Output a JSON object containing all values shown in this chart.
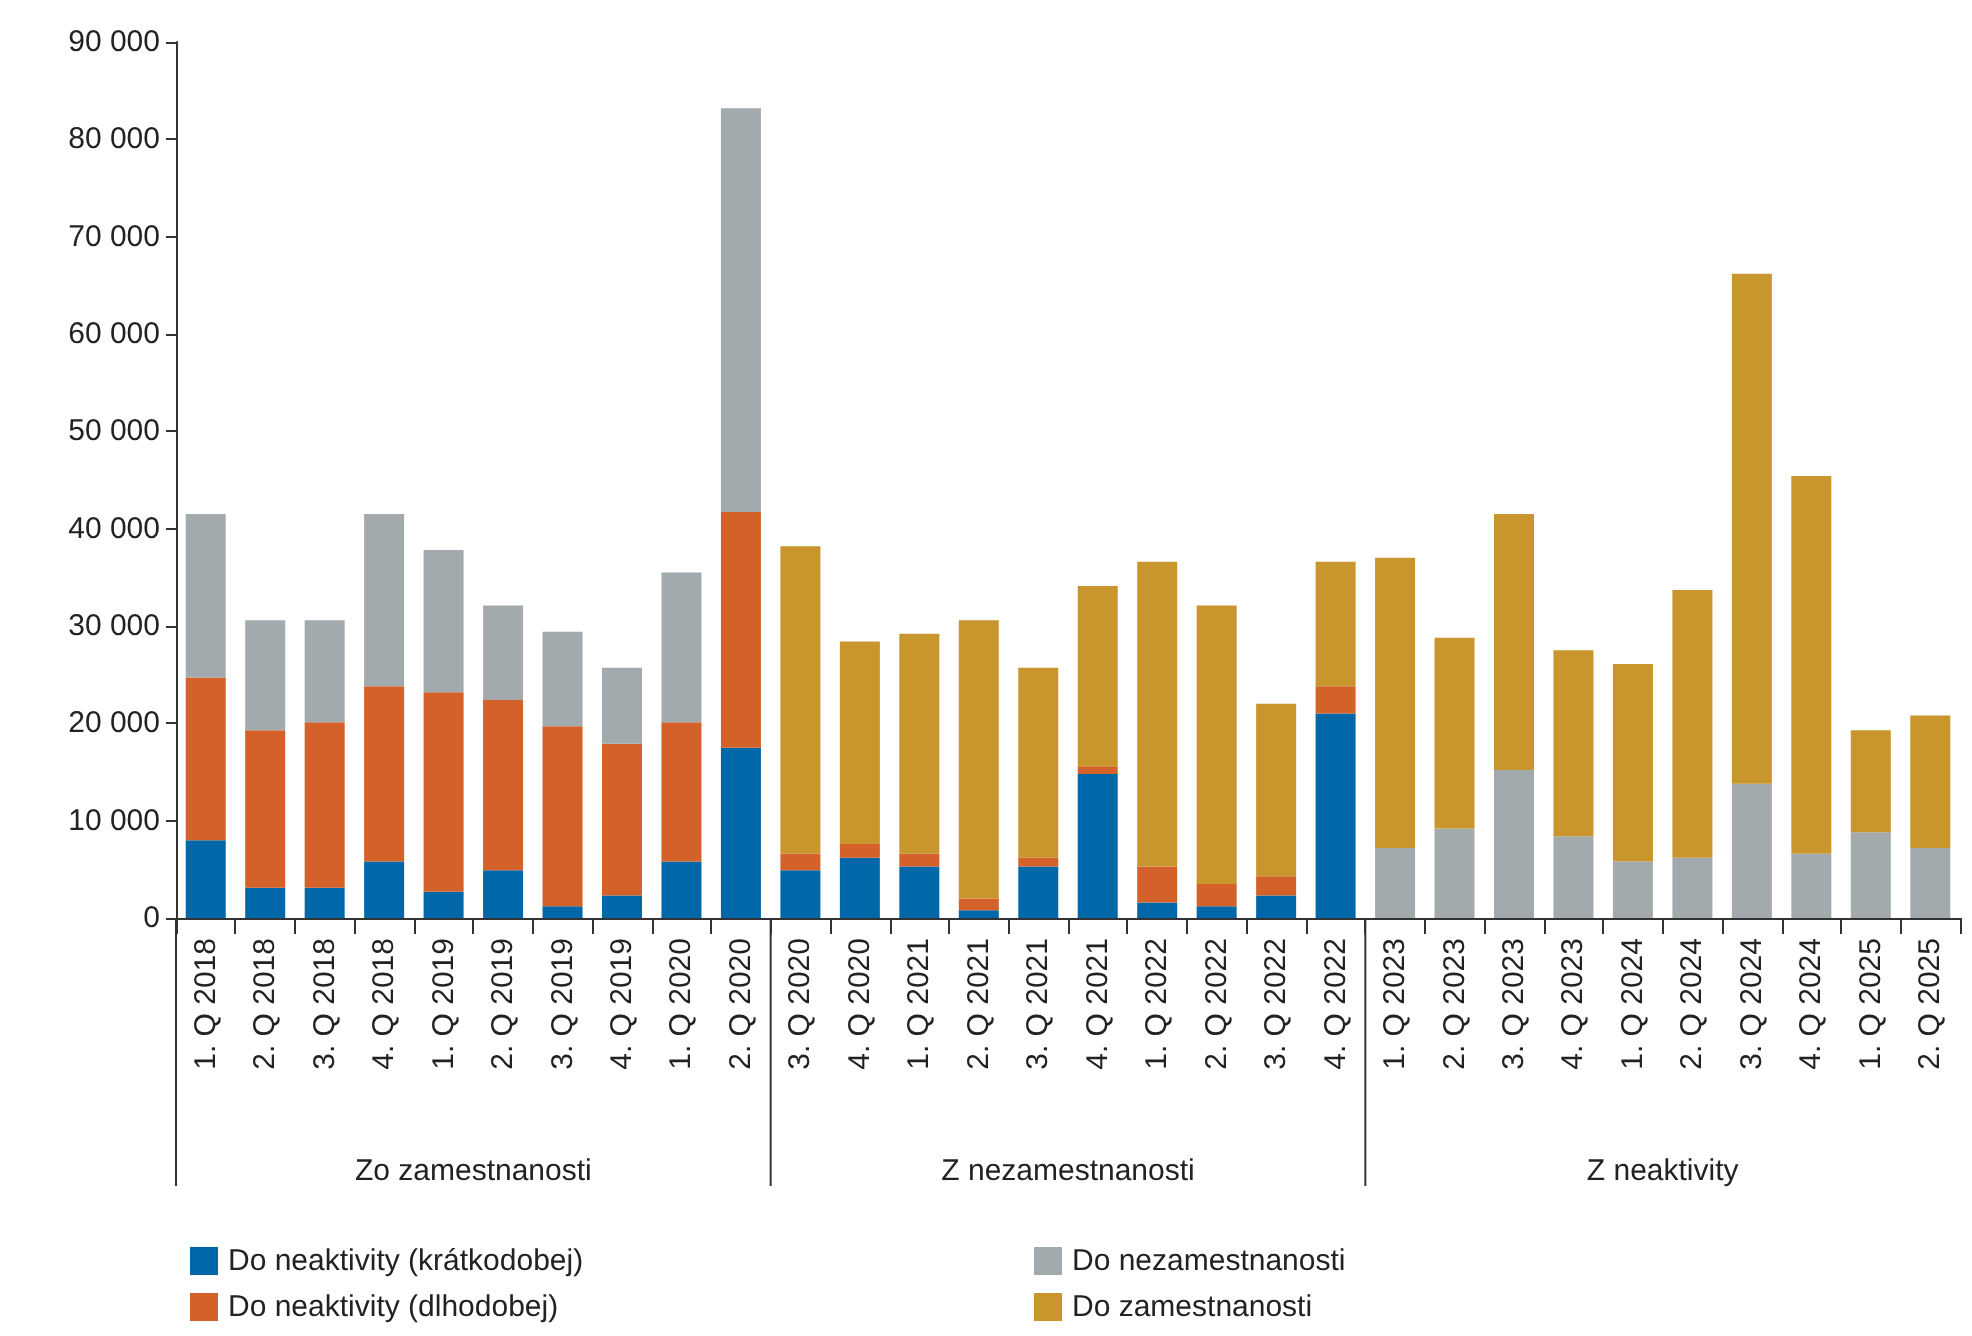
{
  "chart_data": {
    "type": "bar",
    "stacked": true,
    "categories": [
      "1. Q 2018",
      "2. Q 2018",
      "3. Q 2018",
      "4. Q 2018",
      "1. Q 2019",
      "2. Q 2019",
      "3. Q 2019",
      "4. Q 2019",
      "1. Q 2020",
      "2. Q 2020",
      "3. Q 2020",
      "4. Q 2020",
      "1. Q 2021",
      "2. Q 2021",
      "3. Q 2021",
      "4. Q 2021",
      "1. Q 2022",
      "2. Q 2022",
      "3. Q 2022",
      "4. Q 2022",
      "1. Q 2023",
      "2. Q 2023",
      "3. Q 2023",
      "4. Q 2023",
      "1. Q 2024",
      "2. Q 2024",
      "3. Q 2024",
      "4. Q 2024",
      "1. Q 2025",
      "2. Q 2025"
    ],
    "series": [
      {
        "name": "Do neaktivity (krátkodobej)",
        "color": "#0068a8",
        "values": [
          8000,
          3100,
          3100,
          5800,
          2700,
          4900,
          1200,
          2300,
          5800,
          17500,
          4900,
          6200,
          5300,
          800,
          5300,
          14800,
          1600,
          1200,
          2300,
          21000,
          null,
          null,
          null,
          null,
          null,
          null,
          null,
          null,
          null,
          null
        ]
      },
      {
        "name": "Do neaktivity (dlhodobej)",
        "color": "#d4602a",
        "values": [
          16700,
          16200,
          17000,
          18000,
          20500,
          17500,
          18500,
          15600,
          14300,
          24200,
          1700,
          1400,
          1300,
          1200,
          900,
          800,
          3700,
          2300,
          2000,
          2800,
          null,
          null,
          null,
          null,
          null,
          null,
          null,
          null,
          null,
          null
        ]
      },
      {
        "name": "Do nezamestnanosti",
        "color": "#a3aaad",
        "values": [
          16800,
          11300,
          10500,
          17700,
          14600,
          9700,
          9700,
          7800,
          15400,
          41500,
          null,
          null,
          null,
          null,
          null,
          null,
          null,
          null,
          null,
          null,
          7200,
          9200,
          15200,
          8400,
          5800,
          6200,
          13800,
          6600,
          8800,
          7200
        ]
      },
      {
        "name": "Do zamestnanosti",
        "color": "#c9952d",
        "values": [
          null,
          null,
          null,
          null,
          null,
          null,
          null,
          null,
          null,
          null,
          31600,
          20800,
          22600,
          28600,
          19500,
          18500,
          31300,
          28600,
          17700,
          12800,
          29800,
          19600,
          26300,
          19100,
          20300,
          27500,
          52400,
          38800,
          10500,
          13600
        ]
      }
    ],
    "ylim": [
      0,
      90000
    ],
    "yticks": [
      0,
      {
        "value": 10000,
        "label": "10 000"
      },
      {
        "value": 20000,
        "label": "20 000"
      },
      {
        "value": 30000,
        "label": "30 000"
      },
      {
        "value": 40000,
        "label": "40 000"
      },
      {
        "value": 50000,
        "label": "50 000"
      },
      {
        "value": 60000,
        "label": "60 000"
      },
      {
        "value": 70000,
        "label": "70 000"
      },
      {
        "value": 80000,
        "label": "80 000"
      },
      {
        "value": 90000,
        "label": "90 000"
      }
    ],
    "annotations": [
      "Zo zamestnanosti",
      "Z nezamestnanosti",
      "Z neaktivity"
    ],
    "grid": false,
    "legend": "bottom"
  }
}
